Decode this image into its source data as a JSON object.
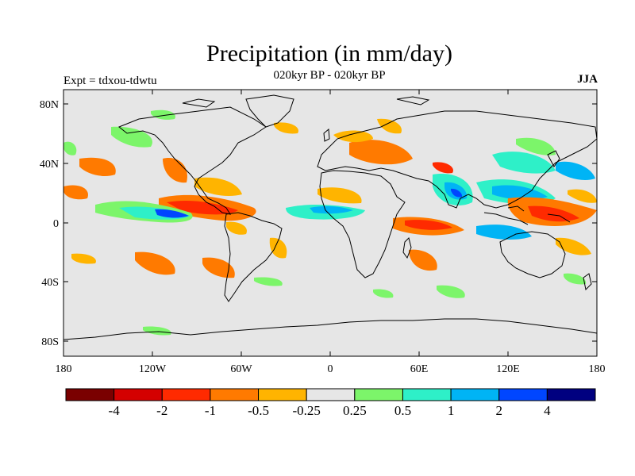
{
  "title": "Precipitation (in mm/day)",
  "subtitle": "020kyr BP - 020kyr BP",
  "left_label": "Expt = tdxou-tdwtu",
  "right_label": "JJA",
  "lat_ticks": [
    "80N",
    "40N",
    "0",
    "40S",
    "80S"
  ],
  "lon_ticks": [
    "180",
    "120W",
    "60W",
    "0",
    "60E",
    "120E",
    "180"
  ],
  "colorbar": {
    "colors": [
      "#7a0000",
      "#d40000",
      "#ff2a00",
      "#ff7a00",
      "#ffb400",
      "#e6e6e6",
      "#7cf56a",
      "#2ef0c8",
      "#00b4f5",
      "#0046ff",
      "#000080"
    ],
    "labels": [
      "-4",
      "-2",
      "-1",
      "-0.5",
      "-0.25",
      "0.25",
      "0.5",
      "1",
      "2",
      "4"
    ]
  }
}
